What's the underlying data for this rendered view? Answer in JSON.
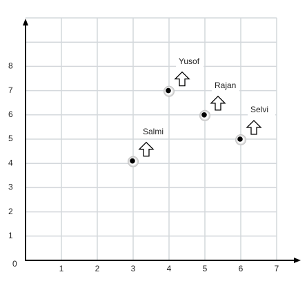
{
  "chart_data": {
    "type": "scatter",
    "x": [
      3,
      4,
      5,
      6
    ],
    "values": [
      4.1,
      7,
      6,
      5
    ],
    "point_labels": [
      "Salmi",
      "Yusof",
      "Rajan",
      "Selvi"
    ],
    "xlim": [
      0,
      7
    ],
    "ylim": [
      0,
      10
    ],
    "xticks": [
      1,
      2,
      3,
      4,
      5,
      6,
      7
    ],
    "yticks": [
      0,
      1,
      2,
      3,
      4,
      5,
      6,
      7,
      8
    ],
    "ygrid": [
      1,
      2,
      3,
      4,
      5,
      6,
      7,
      8,
      9,
      10
    ],
    "grid": true,
    "color": "#000000"
  }
}
